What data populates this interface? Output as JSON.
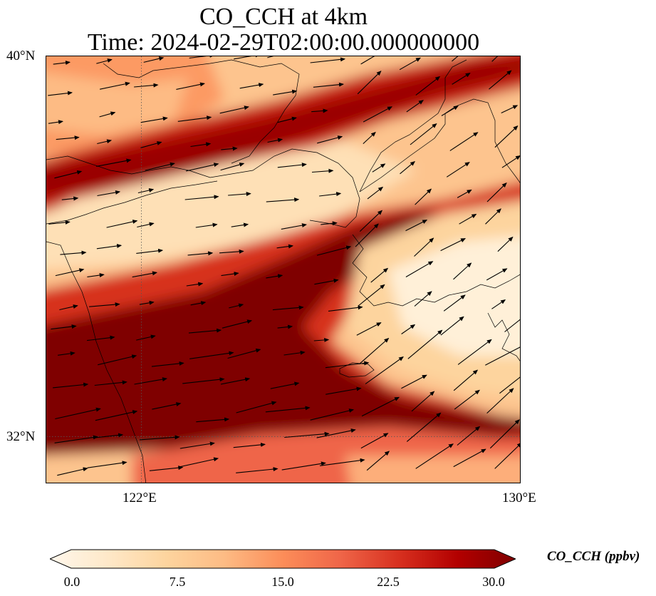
{
  "title": {
    "line1": "CO_CCH at 4km",
    "line2": "Time: 2024-02-29T02:00:00.000000000"
  },
  "map": {
    "lon_range": [
      120,
      130
    ],
    "lat_range": [
      31,
      40
    ],
    "lat_ticks": [
      {
        "value": 40,
        "label": "40°N"
      },
      {
        "value": 32,
        "label": "32°N"
      }
    ],
    "lon_ticks": [
      {
        "value": 122,
        "label": "122°E"
      },
      {
        "value": 130,
        "label": "130°E"
      }
    ],
    "gridlines": {
      "lon": [
        122
      ],
      "lat": [
        32
      ],
      "style": "dotted"
    },
    "wind_vectors": "shown"
  },
  "colorbar": {
    "label": "CO_CCH (ppbv)",
    "min": 0.0,
    "max": 30.0,
    "extend": "both",
    "colormap": "OrRd",
    "ticks": [
      "0.0",
      "7.5",
      "15.0",
      "22.5",
      "30.0"
    ],
    "colors": [
      "#fff7ec",
      "#fee8c8",
      "#fdd49e",
      "#fdbb84",
      "#fc8d59",
      "#ef6548",
      "#d7301f",
      "#b30000",
      "#7f0000"
    ]
  }
}
